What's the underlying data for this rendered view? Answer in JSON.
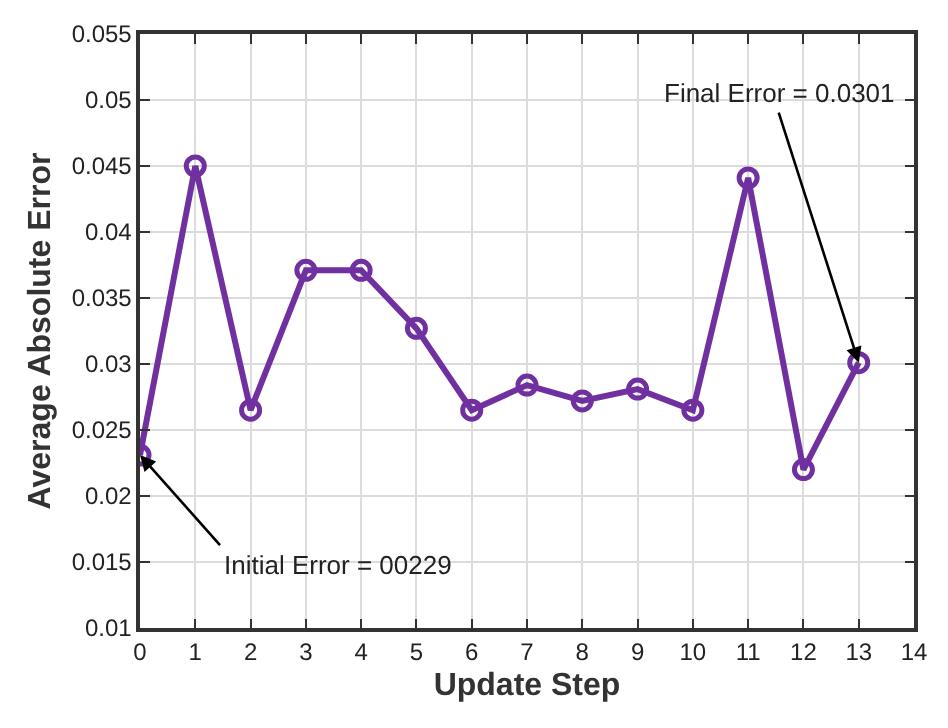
{
  "chart_data": {
    "type": "line",
    "xlabel": "Update Step",
    "ylabel": "Average Absolute Error",
    "x": [
      0,
      1,
      2,
      3,
      4,
      5,
      6,
      7,
      8,
      9,
      10,
      11,
      12,
      13
    ],
    "series": [
      {
        "color": "#7030a0",
        "values": [
          0.0231,
          0.045,
          0.0265,
          0.0371,
          0.0371,
          0.0327,
          0.0265,
          0.0284,
          0.0272,
          0.0281,
          0.0265,
          0.0441,
          0.022,
          0.0301
        ]
      }
    ],
    "xlim": [
      0,
      14
    ],
    "xticks": [
      0,
      1,
      2,
      3,
      4,
      5,
      6,
      7,
      8,
      9,
      10,
      11,
      12,
      13,
      14
    ],
    "ylim": [
      0.01,
      0.055
    ],
    "yticks": [
      0.01,
      0.015,
      0.02,
      0.025,
      0.03,
      0.035,
      0.04,
      0.045,
      0.05,
      0.055
    ],
    "grid": true,
    "marker": "circle",
    "line_style": "solid",
    "annotations": [
      {
        "text": "Initial Error = 00229",
        "x": 0,
        "y": 0.0231
      },
      {
        "text": "Final Error = 0.0301",
        "x": 13,
        "y": 0.0301
      }
    ]
  }
}
